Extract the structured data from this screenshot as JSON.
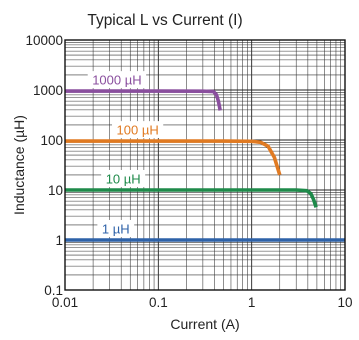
{
  "chart_data": {
    "type": "line",
    "title": "Typical L vs Current (I)",
    "xlabel": "Current (A)",
    "ylabel": "Inductance (µH)",
    "x_scale": "log",
    "y_scale": "log",
    "xlim": [
      0.01,
      10
    ],
    "ylim": [
      0.1,
      10000
    ],
    "x_ticks": [
      "0.01",
      "0.1",
      "1",
      "10"
    ],
    "y_ticks": [
      "10000",
      "1000",
      "100",
      "10",
      "1",
      "0.1"
    ],
    "grid": true,
    "series": [
      {
        "name": "1000 µH",
        "color": "#8a4f9e",
        "points": [
          [
            0.01,
            950
          ],
          [
            0.1,
            950
          ],
          [
            0.3,
            945
          ],
          [
            0.39,
            930
          ],
          [
            0.42,
            800
          ],
          [
            0.44,
            600
          ],
          [
            0.46,
            390
          ]
        ]
      },
      {
        "name": "100 µH",
        "color": "#e07a22",
        "points": [
          [
            0.01,
            95
          ],
          [
            0.1,
            95
          ],
          [
            0.5,
            95
          ],
          [
            1.0,
            94
          ],
          [
            1.25,
            90
          ],
          [
            1.5,
            75
          ],
          [
            1.75,
            45
          ],
          [
            2.0,
            20
          ]
        ]
      },
      {
        "name": "10 µH",
        "color": "#1e8a4a",
        "points": [
          [
            0.01,
            10
          ],
          [
            0.1,
            10
          ],
          [
            1.0,
            10
          ],
          [
            3.0,
            10
          ],
          [
            3.9,
            9.7
          ],
          [
            4.3,
            8.5
          ],
          [
            4.6,
            6.5
          ],
          [
            4.9,
            4.5
          ]
        ]
      },
      {
        "name": "1 µH",
        "color": "#2e62a8",
        "points": [
          [
            0.01,
            1
          ],
          [
            0.1,
            1
          ],
          [
            1,
            1
          ],
          [
            10,
            1
          ]
        ]
      }
    ]
  }
}
